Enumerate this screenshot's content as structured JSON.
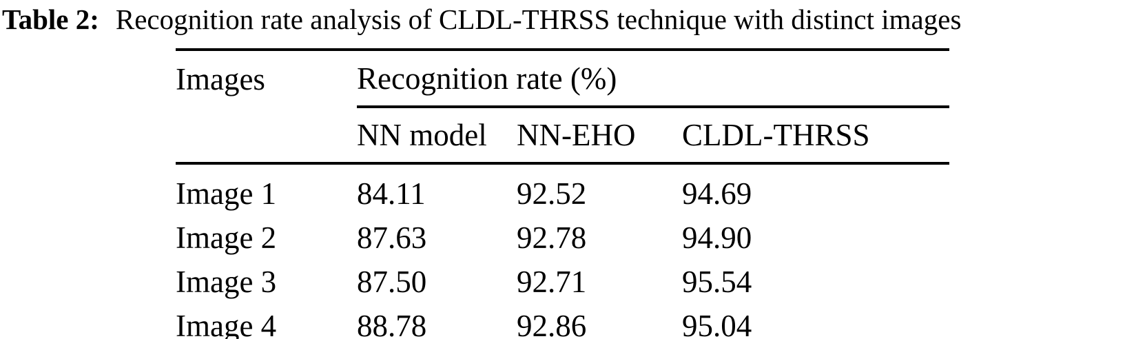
{
  "caption": {
    "label": "Table 2:",
    "text": "Recognition rate analysis of CLDL-THRSS technique with distinct images"
  },
  "table": {
    "col1_header": "Images",
    "group_header": "Recognition rate (%)",
    "sub_headers": [
      "NN model",
      "NN-EHO",
      "CLDL-THRSS"
    ],
    "rows": [
      {
        "image": "Image 1",
        "values": [
          "84.11",
          "92.52",
          "94.69"
        ]
      },
      {
        "image": "Image 2",
        "values": [
          "87.63",
          "92.78",
          "94.90"
        ]
      },
      {
        "image": "Image 3",
        "values": [
          "87.50",
          "92.71",
          "95.54"
        ]
      },
      {
        "image": "Image 4",
        "values": [
          "88.78",
          "92.86",
          "95.04"
        ]
      }
    ]
  },
  "chart_data": {
    "type": "table",
    "title": "Table 2: Recognition rate analysis of CLDL-THRSS technique with distinct images",
    "columns": [
      "Images",
      "NN model",
      "NN-EHO",
      "CLDL-THRSS"
    ],
    "column_group": {
      "label": "Recognition rate (%)",
      "spans": [
        "NN model",
        "NN-EHO",
        "CLDL-THRSS"
      ]
    },
    "rows": [
      [
        "Image 1",
        84.11,
        92.52,
        94.69
      ],
      [
        "Image 2",
        87.63,
        92.78,
        94.9
      ],
      [
        "Image 3",
        87.5,
        92.71,
        95.54
      ],
      [
        "Image 4",
        88.78,
        92.86,
        95.04
      ]
    ]
  }
}
